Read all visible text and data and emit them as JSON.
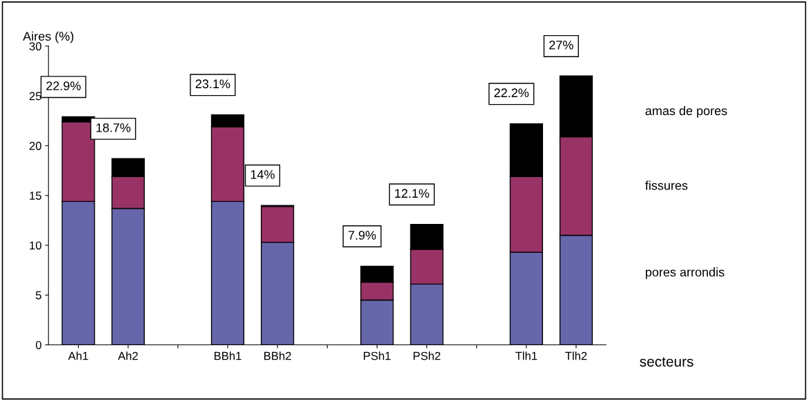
{
  "chart_data": {
    "type": "bar",
    "stacked": true,
    "ylabel": "Aires (%)",
    "xlabel": "secteurs",
    "categories": [
      "Ah1",
      "Ah2",
      null,
      "BBh1",
      "BBh2",
      null,
      "PSh1",
      "PSh2",
      null,
      "Tlh1",
      "Tlh2"
    ],
    "series": [
      {
        "name": "pores arrondis",
        "color": "#6666aa",
        "values": [
          14.4,
          13.7,
          null,
          14.4,
          10.3,
          null,
          4.5,
          6.1,
          null,
          9.3,
          11.0
        ]
      },
      {
        "name": "fissures",
        "color": "#993366",
        "values": [
          8.0,
          3.2,
          null,
          7.5,
          3.6,
          null,
          1.8,
          3.5,
          null,
          7.6,
          9.9
        ]
      },
      {
        "name": "amas de pores",
        "color": "#000000",
        "values": [
          0.5,
          1.8,
          null,
          1.2,
          0.1,
          null,
          1.6,
          2.5,
          null,
          5.3,
          6.1
        ]
      }
    ],
    "totals": [
      "22.9%",
      "18.7%",
      null,
      "23.1%",
      "14%",
      null,
      "7.9%",
      "12.1%",
      null,
      "22.2%",
      "27%"
    ],
    "ylim": [
      0,
      30
    ],
    "yticks": [
      0,
      5,
      10,
      15,
      20,
      25,
      30
    ],
    "grid": false,
    "legend": "right"
  }
}
